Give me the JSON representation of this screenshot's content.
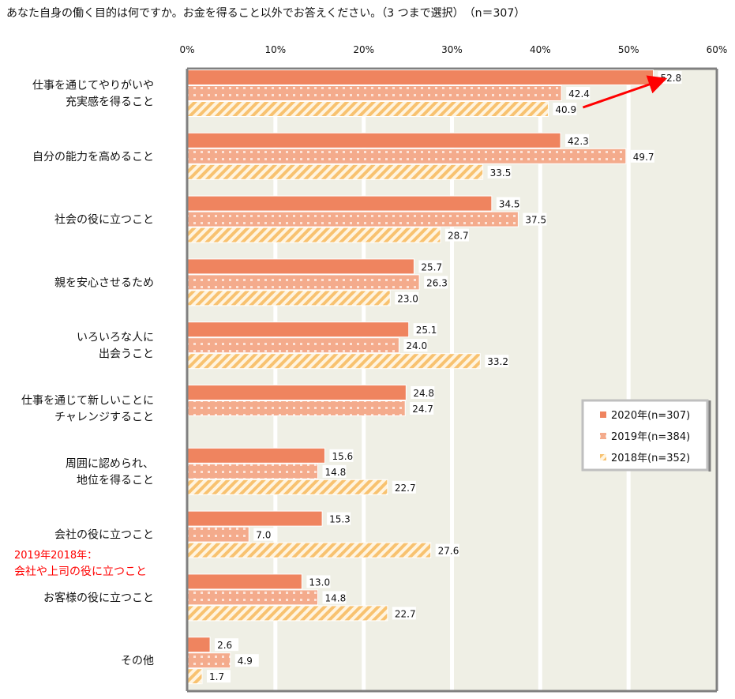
{
  "title": "あなた自身の働く目的は何ですか。お金を得ること以外でお答えください。（3 つまで選択）　（n＝307）",
  "chart_data": {
    "type": "bar",
    "orientation": "horizontal",
    "xlim": [
      0,
      60
    ],
    "x_ticks": [
      "0%",
      "10%",
      "20%",
      "30%",
      "40%",
      "50%",
      "60%"
    ],
    "grid": true,
    "legend_position": "right",
    "categories": [
      [
        "仕事を通じてやりがいや",
        "充実感を得ること"
      ],
      [
        "自分の能力を高めること"
      ],
      [
        "社会の役に立つこと"
      ],
      [
        "親を安心させるため"
      ],
      [
        "いろいろな人に",
        "出会うこと"
      ],
      [
        "仕事を通じて新しいことに",
        "チャレンジすること"
      ],
      [
        "周囲に認められ、",
        "地位を得ること"
      ],
      [
        "会社の役に立つこと"
      ],
      [
        "お客様の役に立つこと"
      ],
      [
        "その他"
      ]
    ],
    "series": [
      {
        "name": "2020年(n=307)",
        "color": "#ef845f",
        "pattern": "solid",
        "values": [
          52.8,
          42.3,
          34.5,
          25.7,
          25.1,
          24.8,
          15.6,
          15.3,
          13.0,
          2.6
        ]
      },
      {
        "name": "2019年(n=384)",
        "color": "#f4ab8c",
        "pattern": "dots",
        "values": [
          42.4,
          49.7,
          37.5,
          26.3,
          24.0,
          24.7,
          14.8,
          7.0,
          14.8,
          4.9
        ]
      },
      {
        "name": "2018年(n=352)",
        "color": "#f8c270",
        "pattern": "diagonal-stripes",
        "values": [
          40.9,
          33.5,
          28.7,
          23.0,
          33.2,
          null,
          22.7,
          27.6,
          22.7,
          1.7
        ]
      }
    ],
    "annotations": {
      "note_line1": "2019年2018年：",
      "note_line2": "会社や上司の役に立つこと",
      "note_color": "#ff0000",
      "arrow": "red arrow from 40.9 to 52.8"
    },
    "background_color": "#efefe5"
  }
}
